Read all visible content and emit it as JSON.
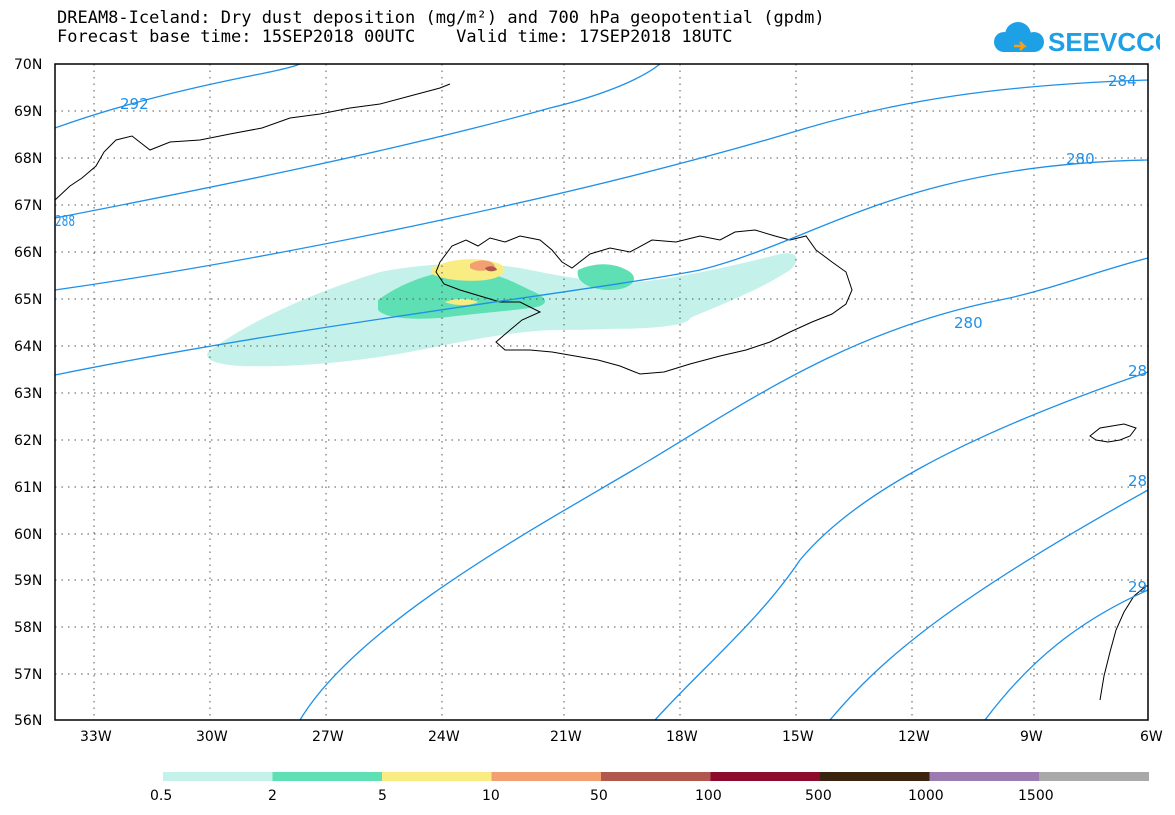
{
  "title_line1": "DREAM8-Iceland: Dry dust deposition (mg/m²) and 700 hPa geopotential (gpdm)",
  "title_line2": "Forecast base time: 15SEP2018 00UTC    Valid time: 17SEP2018 18UTC",
  "logo_text": "SEEVCCC",
  "lat_labels": [
    "70N",
    "69N",
    "68N",
    "67N",
    "66N",
    "65N",
    "64N",
    "63N",
    "62N",
    "61N",
    "60N",
    "59N",
    "58N",
    "57N",
    "56N"
  ],
  "lon_labels": [
    "33W",
    "30W",
    "27W",
    "24W",
    "21W",
    "18W",
    "15W",
    "12W",
    "9W",
    "6W"
  ],
  "contour_labels": [
    "292",
    "284",
    "288",
    "280",
    "280",
    "28",
    "28",
    "29"
  ],
  "legend_labels": [
    "0.5",
    "2",
    "5",
    "10",
    "50",
    "100",
    "500",
    "1000",
    "1500"
  ],
  "legend_colors": [
    "#c4f2ea",
    "#5ee0b4",
    "#f9ec83",
    "#f2a072",
    "#b0584e",
    "#8c0a2c",
    "#3a2410",
    "#9b7bb0",
    "#a9a9a9"
  ],
  "colors": {
    "contour": "#1e90e8",
    "coast": "#000000"
  }
}
